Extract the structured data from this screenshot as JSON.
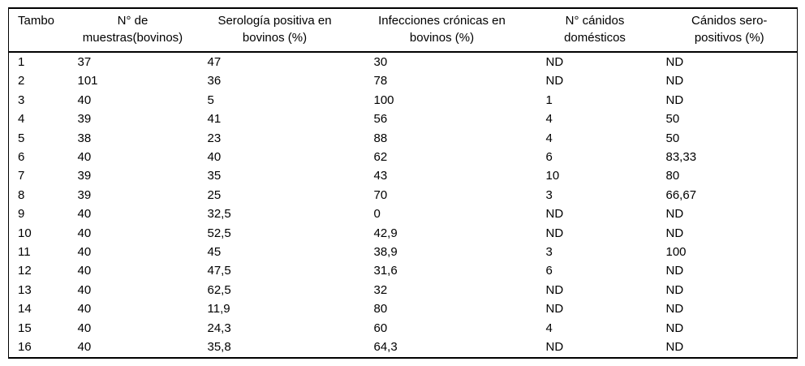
{
  "page": {
    "background": "#ffffff",
    "text_color": "#000000",
    "border_color": "#000000"
  },
  "table": {
    "headers": [
      {
        "line1": "Tambo",
        "line2": ""
      },
      {
        "line1": "N° de",
        "line2": "muestras(bovinos)"
      },
      {
        "line1": "Serología positiva en",
        "line2": "bovinos (%)"
      },
      {
        "line1": "Infecciones crónicas en",
        "line2": "bovinos (%)"
      },
      {
        "line1": "N° cánidos",
        "line2": "domésticos"
      },
      {
        "line1": "Cánidos sero-",
        "line2": "positivos (%)"
      }
    ],
    "rows": [
      [
        "1",
        "37",
        "47",
        "30",
        "ND",
        "ND"
      ],
      [
        "2",
        "101",
        "36",
        "78",
        "ND",
        "ND"
      ],
      [
        "3",
        "40",
        "5",
        "100",
        "1",
        "ND"
      ],
      [
        "4",
        "39",
        "41",
        "56",
        "4",
        "50"
      ],
      [
        "5",
        "38",
        "23",
        "88",
        "4",
        "50"
      ],
      [
        "6",
        "40",
        "40",
        "62",
        "6",
        "83,33"
      ],
      [
        "7",
        "39",
        "35",
        "43",
        "10",
        "80"
      ],
      [
        "8",
        "39",
        "25",
        "70",
        "3",
        "66,67"
      ],
      [
        "9",
        "40",
        "32,5",
        "0",
        "ND",
        "ND"
      ],
      [
        "10",
        "40",
        "52,5",
        "42,9",
        "ND",
        "ND"
      ],
      [
        "11",
        "40",
        "45",
        "38,9",
        "3",
        "100"
      ],
      [
        "12",
        "40",
        "47,5",
        "31,6",
        "6",
        "ND"
      ],
      [
        "13",
        "40",
        "62,5",
        "32",
        "ND",
        "ND"
      ],
      [
        "14",
        "40",
        "11,9",
        "80",
        "ND",
        "ND"
      ],
      [
        "15",
        "40",
        "24,3",
        "60",
        "4",
        "ND"
      ],
      [
        "16",
        "40",
        "35,8",
        "64,3",
        "ND",
        "ND"
      ]
    ]
  }
}
